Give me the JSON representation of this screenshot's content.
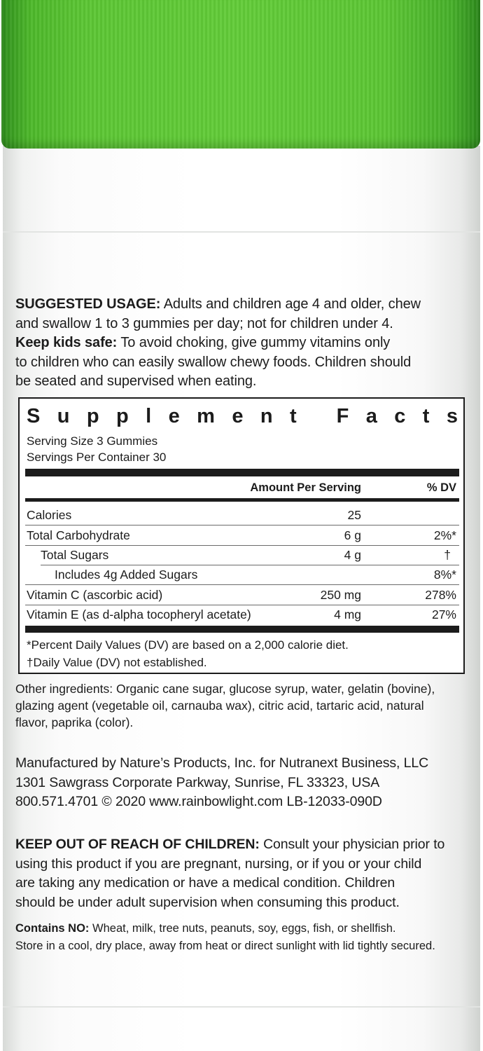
{
  "usage": {
    "label": "SUGGESTED USAGE:",
    "line1": "Adults and children age 4 and older, chew",
    "line2": "and swallow 1 to 3 gummies per day; not for children under 4.",
    "kids_label": "Keep kids safe:",
    "line3": "To avoid choking, give gummy vitamins only",
    "line4": "to children who can easily swallow chewy foods. Children should",
    "line5": "be seated and supervised when eating."
  },
  "supplement_facts": {
    "title": "Supplement Facts",
    "serving_size": "Serving Size 3 Gummies",
    "servings_per_container": "Servings Per Container 30",
    "col_amount": "Amount Per Serving",
    "col_dv": "% DV",
    "rows": [
      {
        "name": "Calories",
        "amount": "25",
        "dv": ""
      },
      {
        "name": "Total Carbohydrate",
        "amount": "6 g",
        "dv": "2%*"
      },
      {
        "name": "Total Sugars",
        "amount": "4 g",
        "dv": "†"
      },
      {
        "name": "Includes 4g Added Sugars",
        "amount": "",
        "dv": "8%*"
      },
      {
        "name": "Vitamin C (ascorbic acid)",
        "amount": "250 mg",
        "dv": "278%"
      },
      {
        "name": "Vitamin E (as d-alpha tocopheryl acetate)",
        "amount": "4 mg",
        "dv": "27%"
      }
    ],
    "footnote1": "*Percent Daily Values (DV) are based on a 2,000 calorie diet.",
    "footnote2": "†Daily Value (DV) not established."
  },
  "ingredients": {
    "line1": "Other ingredients: Organic cane sugar, glucose syrup, water, gelatin (bovine),",
    "line2": "glazing agent (vegetable oil, carnauba wax), citric acid, tartaric acid, natural",
    "line3": "flavor, paprika (color)."
  },
  "manufacturer": {
    "line1": "Manufactured by Nature’s Products, Inc. for Nutranext Business, LLC",
    "line2": "1301 Sawgrass Corporate Parkway, Sunrise, FL 33323, USA",
    "line3": "800.571.4701 © 2020 www.rainbowlight.com  LB-12033-090D"
  },
  "warning": {
    "label": "KEEP OUT OF REACH OF CHILDREN:",
    "line1": "Consult your physician prior to",
    "line2": "using this product if you are pregnant, nursing, or if you or your child",
    "line3": "are taking any medication or have a medical condition. Children",
    "line4": "should be under adult supervision when consuming this product."
  },
  "contains": {
    "label": "Contains NO:",
    "line1": "Wheat, milk, tree nuts, peanuts, soy, eggs, fish, or shellfish.",
    "line2": "Store in a cool, dry place, away from heat or direct sunlight with lid tightly secured."
  },
  "colors": {
    "cap_green": "#5cc634",
    "label_white": "#ffffff",
    "text": "#1c1c1c"
  }
}
